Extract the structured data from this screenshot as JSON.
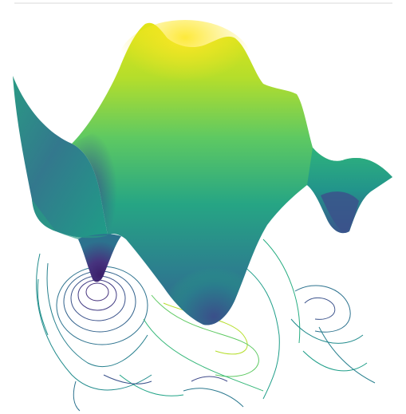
{
  "chart_data": {
    "type": "surface",
    "surface_kind": "3d-surface-with-projected-contours",
    "colormap": "viridis",
    "colormap_stops": [
      "#440154",
      "#3b528b",
      "#21918c",
      "#5ec962",
      "#fde725"
    ],
    "axes_visible": false,
    "grid": false,
    "legend": "none",
    "title": "",
    "xlabel": "",
    "ylabel": "",
    "zlabel": ""
  }
}
